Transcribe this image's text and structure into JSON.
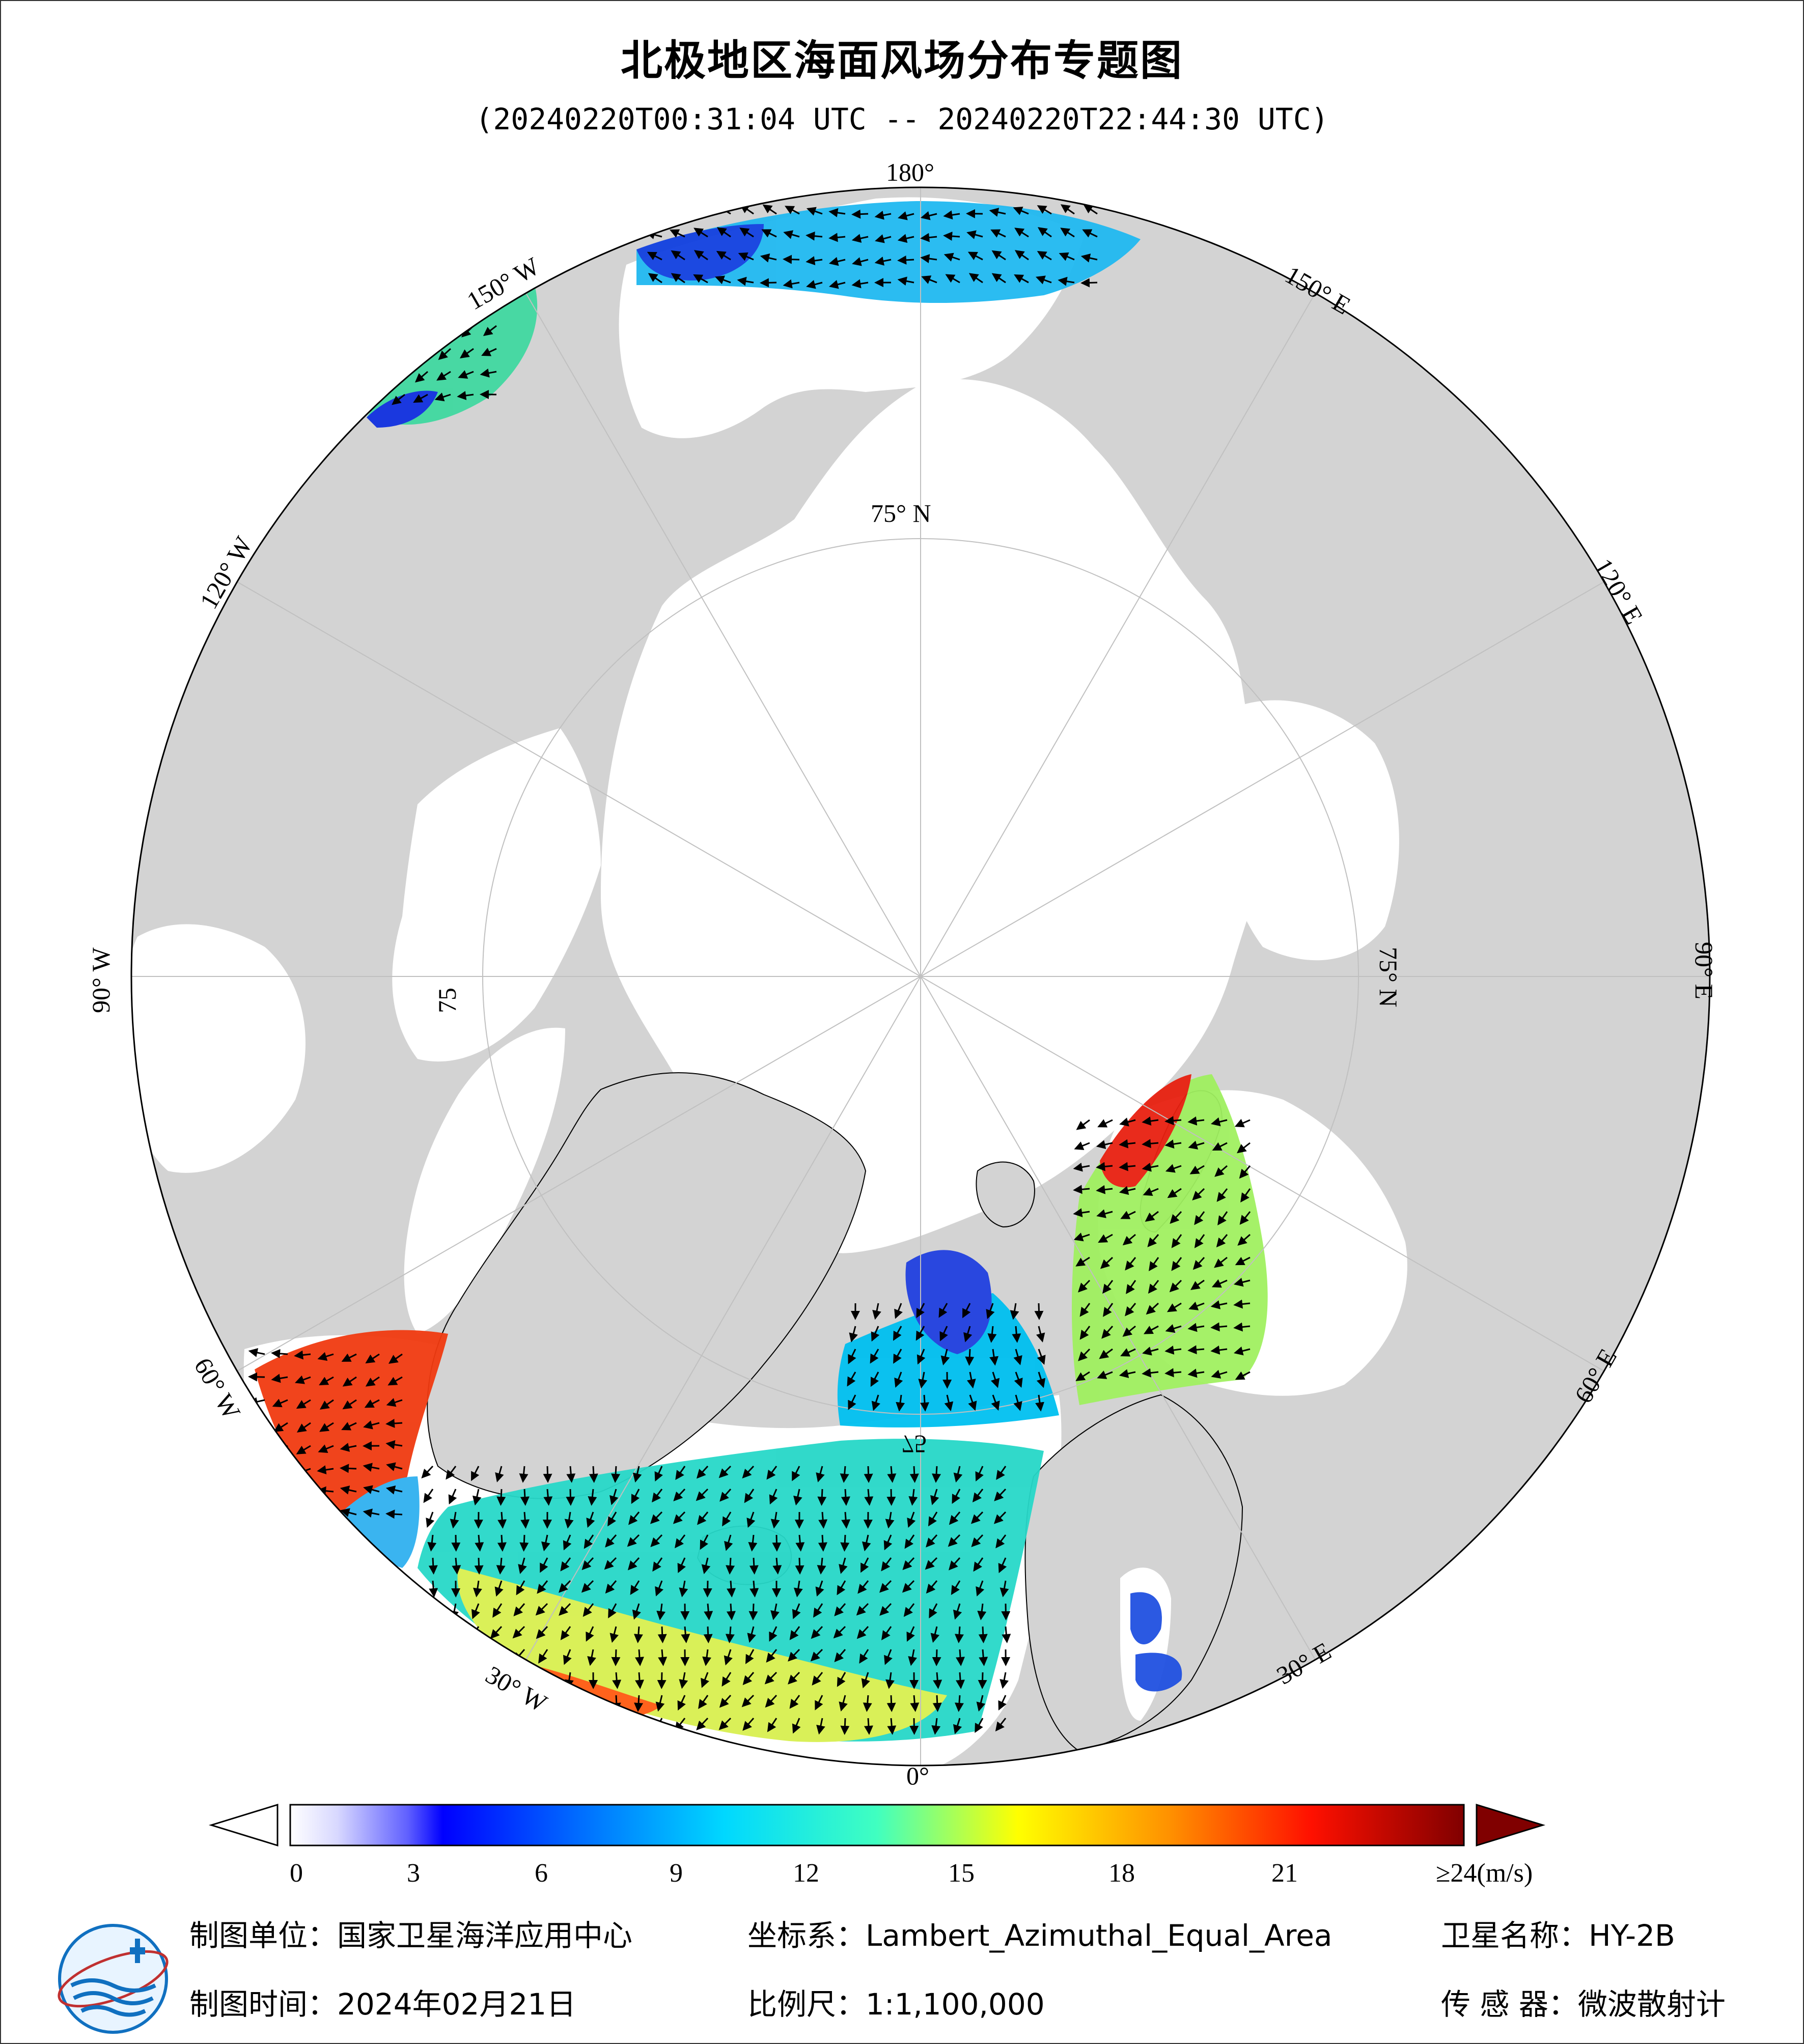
{
  "title": "北极地区海面风场分布专题图",
  "subtitle": "(20240220T00:31:04 UTC -- 20240220T22:44:30 UTC)",
  "map": {
    "projection_note": "polar azimuthal view centered on North Pole",
    "longitude_labels": {
      "lon_180": "180°",
      "lon_150E": "150° E",
      "lon_120E": "120° E",
      "lon_90E": "90° E",
      "lon_60E": "60° E",
      "lon_30E": "30° E",
      "lon_0": "0°",
      "lon_30W": "30° W",
      "lon_60W": "60° W",
      "lon_90W": "90° W",
      "lon_120W": "120° W",
      "lon_150W": "150° W"
    },
    "latitude_labels": {
      "lat_75_top": "75° N",
      "lat_75_left": "75",
      "lat_75_right": "75° N",
      "lat_75_bottom": "75"
    },
    "colors": {
      "land": "#d3d3d3",
      "ocean": "#ffffff",
      "grid": "#bbbbbb"
    }
  },
  "colorbar": {
    "unit": "(m/s)",
    "ticks": [
      "0",
      "3",
      "6",
      "9",
      "12",
      "15",
      "18",
      "21",
      "≥24(m/s)"
    ],
    "tick_values": [
      0,
      3,
      6,
      9,
      12,
      15,
      18,
      21,
      24
    ],
    "range": [
      0,
      24
    ],
    "stops": [
      "#ffffff",
      "#c8c8ff",
      "#0000ff",
      "#0080ff",
      "#00ffff",
      "#80ff80",
      "#ffff00",
      "#ff8000",
      "#ff0000",
      "#800000"
    ]
  },
  "footer": {
    "unit_label": "制图单位：国家卫星海洋应用中心",
    "coord_label": "坐标系：Lambert_Azimuthal_Equal_Area",
    "satellite_label": "卫星名称：HY-2B",
    "time_label": "制图时间：2024年02月21日",
    "scale_label": "比例尺：1:1,100,000",
    "sensor_label": "传 感 器：微波散射计"
  }
}
